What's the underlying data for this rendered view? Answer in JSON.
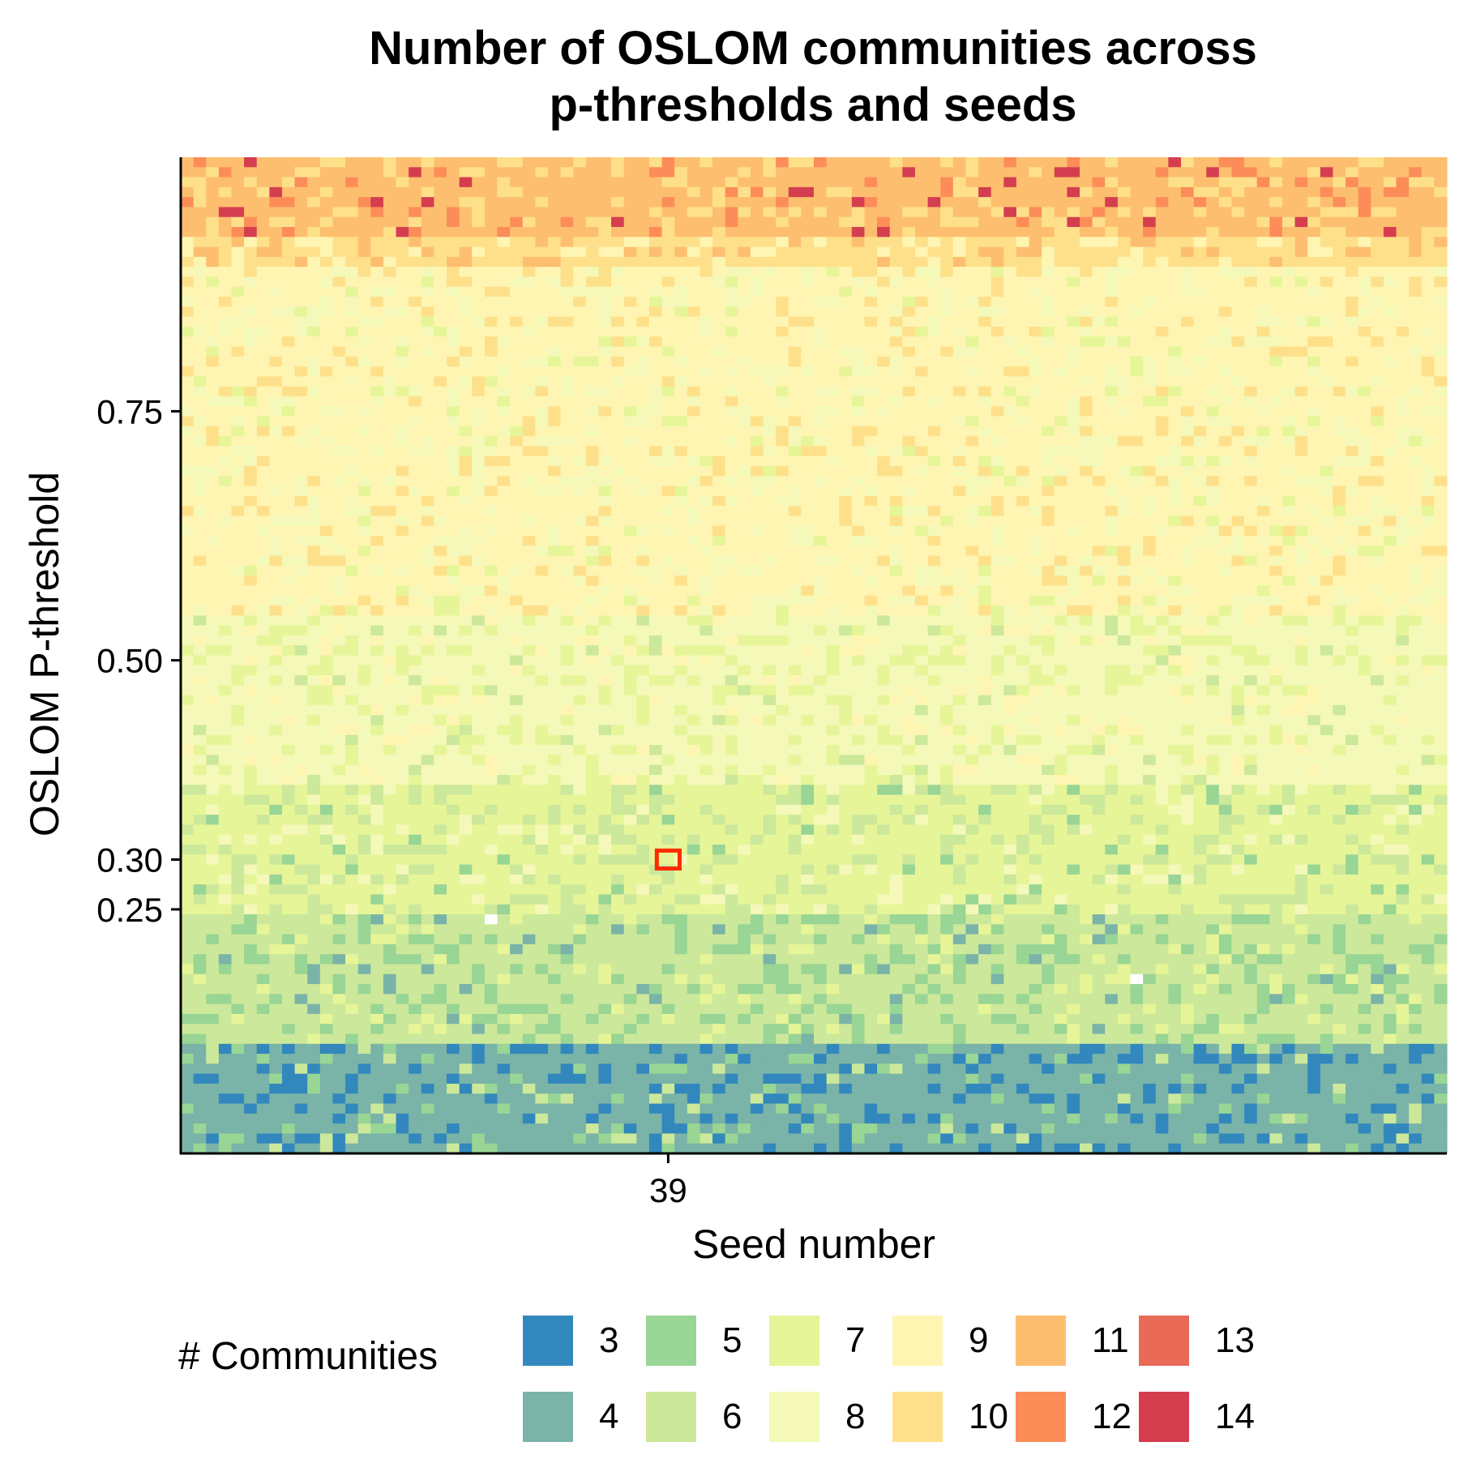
{
  "chart_data": {
    "type": "heatmap",
    "title_lines": [
      "Number of OSLOM communities across",
      "p-thresholds and seeds"
    ],
    "xlabel": "Seed number",
    "ylabel": "OSLOM P-threshold",
    "x_ticks": [
      {
        "value": 39,
        "label": "39"
      }
    ],
    "x_range": [
      1,
      100
    ],
    "y_ticks": [
      {
        "value": 0.25,
        "label": "0.25"
      },
      {
        "value": 0.3,
        "label": "0.30"
      },
      {
        "value": 0.5,
        "label": "0.50"
      },
      {
        "value": 0.75,
        "label": "0.75"
      }
    ],
    "y_range": [
      0.01,
      1.0
    ],
    "y_step": 0.01,
    "grid": false,
    "legend": {
      "title": "# Communities",
      "position": "bottom",
      "entries": [
        {
          "label": "3",
          "color": "#3288bd"
        },
        {
          "label": "4",
          "color": "#7ab3a8"
        },
        {
          "label": "5",
          "color": "#99d594"
        },
        {
          "label": "6",
          "color": "#cce89a"
        },
        {
          "label": "7",
          "color": "#e6f598"
        },
        {
          "label": "8",
          "color": "#f4f8b8"
        },
        {
          "label": "9",
          "color": "#fff5b3"
        },
        {
          "label": "10",
          "color": "#fee08b"
        },
        {
          "label": "11",
          "color": "#fdbf6f"
        },
        {
          "label": "12",
          "color": "#fc8d59"
        },
        {
          "label": "13",
          "color": "#e96a56"
        },
        {
          "label": "14",
          "color": "#d53e4f"
        }
      ]
    },
    "highlight": {
      "seed": 39,
      "p_threshold": 0.3,
      "color": "#ff2a00"
    },
    "community_bands": [
      {
        "p_from": 0.01,
        "p_to": 0.11,
        "dominant": 4,
        "minor": [
          3,
          5,
          6
        ]
      },
      {
        "p_from": 0.12,
        "p_to": 0.24,
        "dominant": 6,
        "minor": [
          5,
          7,
          8,
          4
        ]
      },
      {
        "p_from": 0.25,
        "p_to": 0.37,
        "dominant": 7,
        "minor": [
          6,
          8,
          5
        ]
      },
      {
        "p_from": 0.38,
        "p_to": 0.54,
        "dominant": 8,
        "minor": [
          7,
          9,
          6
        ]
      },
      {
        "p_from": 0.55,
        "p_to": 0.89,
        "dominant": 9,
        "minor": [
          8,
          10,
          7
        ]
      },
      {
        "p_from": 0.9,
        "p_to": 0.92,
        "dominant": 10,
        "minor": [
          9,
          11
        ]
      },
      {
        "p_from": 0.93,
        "p_to": 1.0,
        "dominant": 11,
        "minor": [
          10,
          12,
          13,
          14
        ]
      }
    ],
    "missing_cells": [
      {
        "seed": 25,
        "p_threshold": 0.24
      },
      {
        "seed": 76,
        "p_threshold": 0.18
      }
    ]
  }
}
